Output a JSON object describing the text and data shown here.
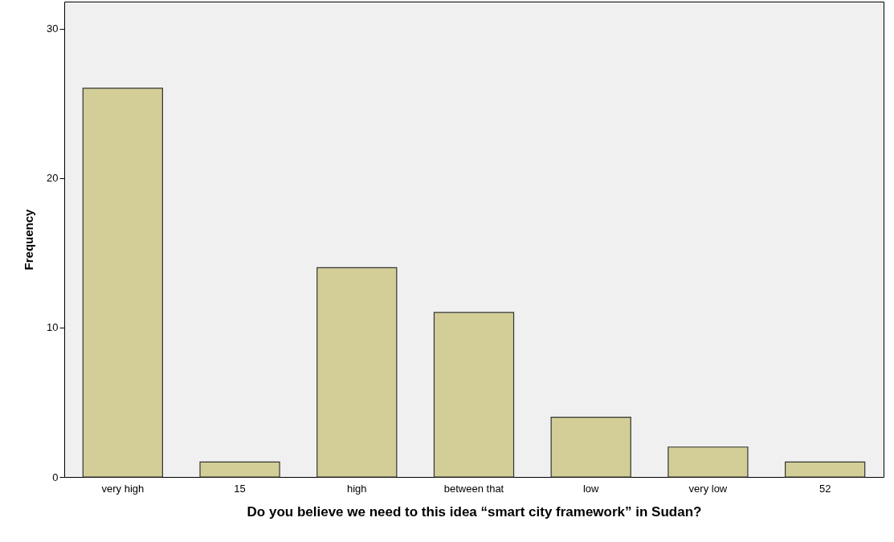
{
  "chart_data": {
    "type": "bar",
    "xlabel": "Do you believe we need to this idea “smart city framework” in Sudan?",
    "ylabel": "Frequency",
    "categories": [
      "very high",
      "15",
      "high",
      "between that",
      "low",
      "very low",
      "52"
    ],
    "values": [
      26,
      1,
      14,
      11,
      4,
      2,
      1
    ],
    "color": "#d3ce97",
    "ylim": [
      0,
      31.8
    ],
    "yticks": [
      0,
      10,
      20,
      30
    ],
    "grid": false
  }
}
